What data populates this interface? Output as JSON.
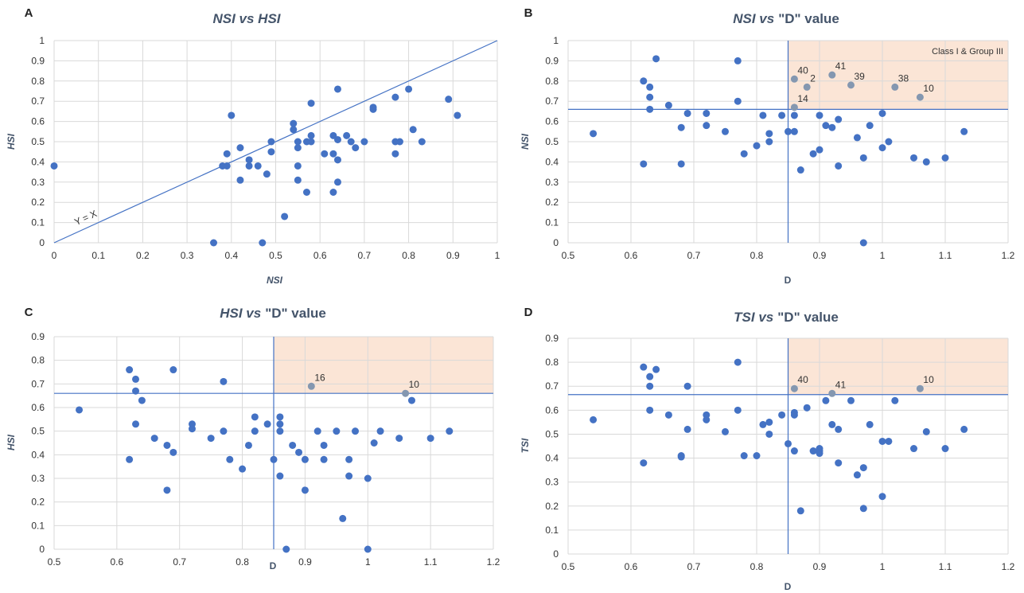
{
  "colors": {
    "marker": "#4472c4",
    "marker_highlight": "#8497b0",
    "line": "#4472c4",
    "grid": "#d9d9d9",
    "region": "#fbe5d6"
  },
  "chart_data": [
    {
      "panel": "A",
      "type": "scatter",
      "title_main": "NSI vs HSI",
      "title_tail": "",
      "xlabel": "NSI",
      "ylabel": "HSI",
      "xlim": [
        0,
        1
      ],
      "ylim": [
        0,
        1
      ],
      "xticks": [
        "0",
        "0.1",
        "0.2",
        "0.3",
        "0.4",
        "0.5",
        "0.6",
        "0.7",
        "0.8",
        "0.9",
        "1"
      ],
      "yticks": [
        "0",
        "0.1",
        "0.2",
        "0.3",
        "0.4",
        "0.5",
        "0.6",
        "0.7",
        "0.8",
        "0.9",
        "1"
      ],
      "diagonal_label": "Y = X",
      "points": [
        [
          0,
          0.38
        ],
        [
          0.36,
          0
        ],
        [
          0.38,
          0.38
        ],
        [
          0.39,
          0.38
        ],
        [
          0.39,
          0.44
        ],
        [
          0.4,
          0.63
        ],
        [
          0.42,
          0.47
        ],
        [
          0.42,
          0.31
        ],
        [
          0.44,
          0.41
        ],
        [
          0.44,
          0.38
        ],
        [
          0.46,
          0.38
        ],
        [
          0.47,
          0
        ],
        [
          0.48,
          0.34
        ],
        [
          0.49,
          0.5
        ],
        [
          0.49,
          0.45
        ],
        [
          0.52,
          0.13
        ],
        [
          0.54,
          0.59
        ],
        [
          0.54,
          0.56
        ],
        [
          0.55,
          0.5
        ],
        [
          0.55,
          0.47
        ],
        [
          0.55,
          0.38
        ],
        [
          0.55,
          0.31
        ],
        [
          0.57,
          0.25
        ],
        [
          0.57,
          0.5
        ],
        [
          0.58,
          0.69
        ],
        [
          0.58,
          0.53
        ],
        [
          0.58,
          0.5
        ],
        [
          0.61,
          0.44
        ],
        [
          0.63,
          0.53
        ],
        [
          0.63,
          0.44
        ],
        [
          0.63,
          0.25
        ],
        [
          0.64,
          0.51
        ],
        [
          0.64,
          0.41
        ],
        [
          0.64,
          0.3
        ],
        [
          0.64,
          0.76
        ],
        [
          0.66,
          0.53
        ],
        [
          0.67,
          0.5
        ],
        [
          0.68,
          0.47
        ],
        [
          0.7,
          0.5
        ],
        [
          0.72,
          0.67
        ],
        [
          0.72,
          0.66
        ],
        [
          0.77,
          0.72
        ],
        [
          0.77,
          0.5
        ],
        [
          0.77,
          0.44
        ],
        [
          0.78,
          0.5
        ],
        [
          0.8,
          0.76
        ],
        [
          0.81,
          0.56
        ],
        [
          0.83,
          0.5
        ],
        [
          0.89,
          0.71
        ],
        [
          0.91,
          0.63
        ]
      ]
    },
    {
      "panel": "B",
      "type": "scatter",
      "title_main": "NSI vs",
      "title_tail": "\"D\" value",
      "xlabel": "D",
      "ylabel": "NSI",
      "xlim": [
        0.5,
        1.2
      ],
      "ylim": [
        0,
        1
      ],
      "xticks": [
        "0.5",
        "0.6",
        "0.7",
        "0.8",
        "0.9",
        "1",
        "1.1",
        "1.2"
      ],
      "yticks": [
        "0",
        "0.1",
        "0.2",
        "0.3",
        "0.4",
        "0.5",
        "0.6",
        "0.7",
        "0.8",
        "0.9",
        "1"
      ],
      "vline": 0.85,
      "hline": 0.66,
      "region_label": "Class I & Group III",
      "points": [
        [
          0.54,
          0.54
        ],
        [
          0.62,
          0.8
        ],
        [
          0.62,
          0.39
        ],
        [
          0.63,
          0.77
        ],
        [
          0.63,
          0.72
        ],
        [
          0.63,
          0.66
        ],
        [
          0.64,
          0.91
        ],
        [
          0.66,
          0.68
        ],
        [
          0.68,
          0.57
        ],
        [
          0.68,
          0.39
        ],
        [
          0.69,
          0.64
        ],
        [
          0.72,
          0.64
        ],
        [
          0.72,
          0.58
        ],
        [
          0.75,
          0.55
        ],
        [
          0.77,
          0.9
        ],
        [
          0.77,
          0.7
        ],
        [
          0.78,
          0.44
        ],
        [
          0.8,
          0.48
        ],
        [
          0.81,
          0.63
        ],
        [
          0.82,
          0.54
        ],
        [
          0.82,
          0.5
        ],
        [
          0.84,
          0.63
        ],
        [
          0.85,
          0.55
        ],
        [
          0.86,
          0.63
        ],
        [
          0.86,
          0.55
        ],
        [
          0.87,
          0.36
        ],
        [
          0.89,
          0.44
        ],
        [
          0.9,
          0.63
        ],
        [
          0.9,
          0.46
        ],
        [
          0.91,
          0.58
        ],
        [
          0.92,
          0.57
        ],
        [
          0.93,
          0.61
        ],
        [
          0.93,
          0.38
        ],
        [
          0.96,
          0.52
        ],
        [
          0.97,
          0.42
        ],
        [
          0.97,
          0
        ],
        [
          0.98,
          0.58
        ],
        [
          1,
          0.64
        ],
        [
          1,
          0.47
        ],
        [
          1.01,
          0.5
        ],
        [
          1.05,
          0.42
        ],
        [
          1.07,
          0.4
        ],
        [
          1.1,
          0.42
        ],
        [
          1.13,
          0.55
        ]
      ],
      "labeled_points": [
        {
          "label": "40",
          "x": 0.86,
          "y": 0.81
        },
        {
          "label": "2",
          "x": 0.88,
          "y": 0.77
        },
        {
          "label": "41",
          "x": 0.92,
          "y": 0.83
        },
        {
          "label": "39",
          "x": 0.95,
          "y": 0.78
        },
        {
          "label": "38",
          "x": 1.02,
          "y": 0.77
        },
        {
          "label": "10",
          "x": 1.06,
          "y": 0.72
        },
        {
          "label": "14",
          "x": 0.86,
          "y": 0.67
        }
      ]
    },
    {
      "panel": "C",
      "type": "scatter",
      "title_main": "HSI vs",
      "title_tail": "\"D\" value",
      "xlabel": "D",
      "ylabel": "HSI",
      "xlim": [
        0.5,
        1.2
      ],
      "ylim": [
        0,
        0.9
      ],
      "xticks": [
        "0.5",
        "0.6",
        "0.7",
        "0.8",
        "0.9",
        "1",
        "1.1",
        "1.2"
      ],
      "yticks": [
        "0",
        "0.1",
        "0.2",
        "0.3",
        "0.4",
        "0.5",
        "0.6",
        "0.7",
        "0.8",
        "0.9"
      ],
      "vline": 0.85,
      "hline": 0.66,
      "region_label": "",
      "points": [
        [
          0.54,
          0.59
        ],
        [
          0.62,
          0.76
        ],
        [
          0.62,
          0.38
        ],
        [
          0.63,
          0.72
        ],
        [
          0.63,
          0.67
        ],
        [
          0.63,
          0.53
        ],
        [
          0.64,
          0.63
        ],
        [
          0.66,
          0.47
        ],
        [
          0.68,
          0.44
        ],
        [
          0.68,
          0.25
        ],
        [
          0.69,
          0.76
        ],
        [
          0.69,
          0.41
        ],
        [
          0.72,
          0.53
        ],
        [
          0.72,
          0.51
        ],
        [
          0.75,
          0.47
        ],
        [
          0.77,
          0.71
        ],
        [
          0.77,
          0.5
        ],
        [
          0.78,
          0.38
        ],
        [
          0.8,
          0.34
        ],
        [
          0.81,
          0.44
        ],
        [
          0.82,
          0.56
        ],
        [
          0.82,
          0.5
        ],
        [
          0.84,
          0.53
        ],
        [
          0.85,
          0.38
        ],
        [
          0.86,
          0.56
        ],
        [
          0.86,
          0.53
        ],
        [
          0.86,
          0.5
        ],
        [
          0.86,
          0.31
        ],
        [
          0.87,
          0
        ],
        [
          0.88,
          0.44
        ],
        [
          0.89,
          0.41
        ],
        [
          0.9,
          0.38
        ],
        [
          0.9,
          0.25
        ],
        [
          0.92,
          0.5
        ],
        [
          0.93,
          0.44
        ],
        [
          0.93,
          0.38
        ],
        [
          0.95,
          0.5
        ],
        [
          0.96,
          0.13
        ],
        [
          0.97,
          0.38
        ],
        [
          0.97,
          0.31
        ],
        [
          0.98,
          0.5
        ],
        [
          1,
          0.3
        ],
        [
          1,
          0
        ],
        [
          1.01,
          0.45
        ],
        [
          1.02,
          0.5
        ],
        [
          1.05,
          0.47
        ],
        [
          1.07,
          0.63
        ],
        [
          1.1,
          0.47
        ],
        [
          1.13,
          0.5
        ]
      ],
      "labeled_points": [
        {
          "label": "16",
          "x": 0.91,
          "y": 0.69
        },
        {
          "label": "10",
          "x": 1.06,
          "y": 0.66
        }
      ]
    },
    {
      "panel": "D",
      "type": "scatter",
      "title_main": "TSI vs",
      "title_tail": "\"D\" value",
      "xlabel": "D",
      "ylabel": "TSI",
      "xlim": [
        0.5,
        1.2
      ],
      "ylim": [
        0,
        0.9
      ],
      "xticks": [
        "0.5",
        "0.6",
        "0.7",
        "0.8",
        "0.9",
        "1",
        "1.1",
        "1.2"
      ],
      "yticks": [
        "0",
        "0.1",
        "0.2",
        "0.3",
        "0.4",
        "0.5",
        "0.6",
        "0.7",
        "0.8",
        "0.9"
      ],
      "vline": 0.85,
      "hline": 0.665,
      "region_label": "",
      "points": [
        [
          0.54,
          0.56
        ],
        [
          0.62,
          0.78
        ],
        [
          0.62,
          0.38
        ],
        [
          0.63,
          0.74
        ],
        [
          0.63,
          0.7
        ],
        [
          0.63,
          0.6
        ],
        [
          0.64,
          0.77
        ],
        [
          0.66,
          0.58
        ],
        [
          0.68,
          0.41
        ],
        [
          0.68,
          0.405
        ],
        [
          0.69,
          0.7
        ],
        [
          0.69,
          0.52
        ],
        [
          0.72,
          0.58
        ],
        [
          0.72,
          0.56
        ],
        [
          0.75,
          0.51
        ],
        [
          0.77,
          0.8
        ],
        [
          0.77,
          0.6
        ],
        [
          0.78,
          0.41
        ],
        [
          0.8,
          0.41
        ],
        [
          0.81,
          0.54
        ],
        [
          0.82,
          0.55
        ],
        [
          0.82,
          0.5
        ],
        [
          0.84,
          0.58
        ],
        [
          0.85,
          0.46
        ],
        [
          0.86,
          0.59
        ],
        [
          0.86,
          0.58
        ],
        [
          0.86,
          0.43
        ],
        [
          0.87,
          0.18
        ],
        [
          0.88,
          0.61
        ],
        [
          0.89,
          0.43
        ],
        [
          0.9,
          0.44
        ],
        [
          0.9,
          0.43
        ],
        [
          0.9,
          0.42
        ],
        [
          0.91,
          0.64
        ],
        [
          0.92,
          0.54
        ],
        [
          0.93,
          0.52
        ],
        [
          0.93,
          0.38
        ],
        [
          0.95,
          0.64
        ],
        [
          0.96,
          0.33
        ],
        [
          0.97,
          0.36
        ],
        [
          0.97,
          0.19
        ],
        [
          0.98,
          0.54
        ],
        [
          1,
          0.47
        ],
        [
          1,
          0.24
        ],
        [
          1.01,
          0.47
        ],
        [
          1.02,
          0.64
        ],
        [
          1.05,
          0.44
        ],
        [
          1.07,
          0.51
        ],
        [
          1.1,
          0.44
        ],
        [
          1.13,
          0.52
        ]
      ],
      "labeled_points": [
        {
          "label": "40",
          "x": 0.86,
          "y": 0.69
        },
        {
          "label": "41",
          "x": 0.92,
          "y": 0.67
        },
        {
          "label": "10",
          "x": 1.06,
          "y": 0.69
        }
      ]
    }
  ]
}
